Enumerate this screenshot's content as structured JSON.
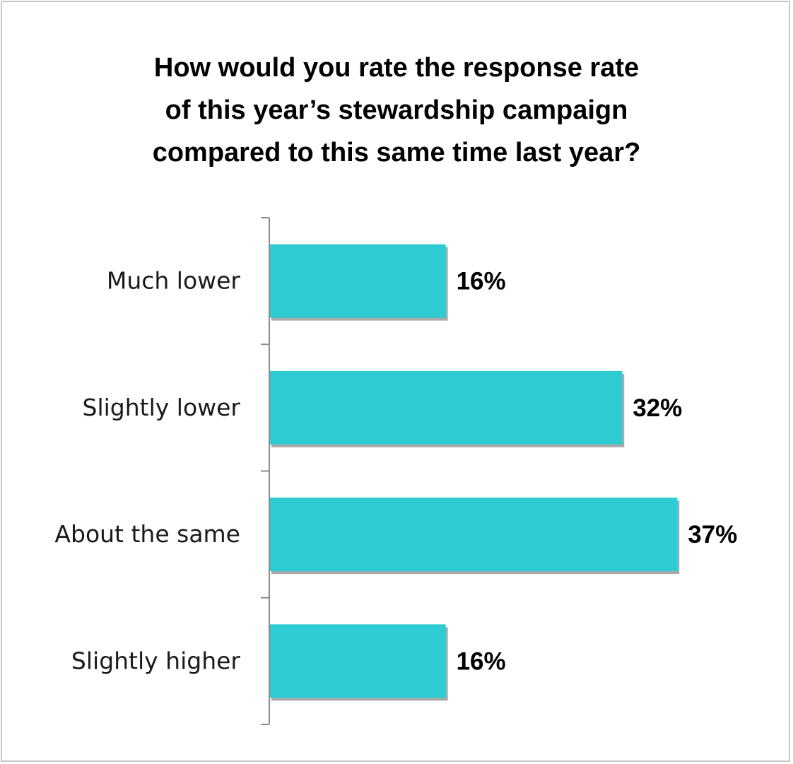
{
  "chart_data": {
    "type": "bar",
    "orientation": "horizontal",
    "title_lines": [
      "How would you rate the response rate",
      "of this year’s stewardship campaign",
      "compared to this same time last year?"
    ],
    "categories": [
      "Much lower",
      "Slightly lower",
      "About the same",
      "Slightly higher"
    ],
    "values": [
      16,
      32,
      37,
      16
    ],
    "value_labels": [
      "16%",
      "32%",
      "37%",
      "16%"
    ],
    "xlim": [
      0,
      40
    ],
    "grid": false,
    "legend": "none",
    "bar_color": "#2ecbd3",
    "shadow_color": "#9a9a9a",
    "axis_color": "#8c8c8c"
  }
}
